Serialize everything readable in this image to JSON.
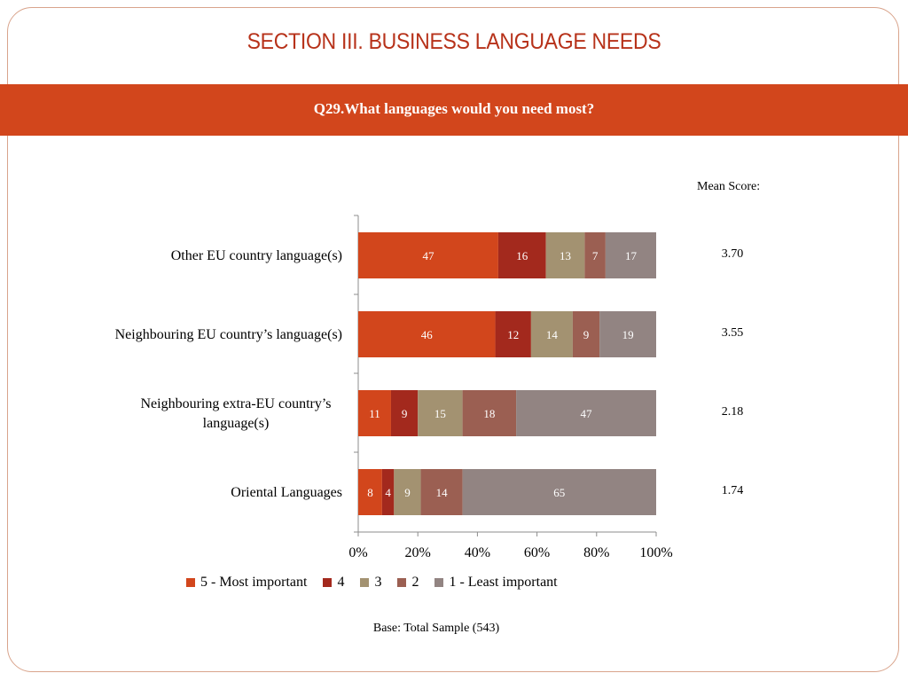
{
  "slide": {
    "section_title": "SECTION III. BUSINESS LANGUAGE NEEDS",
    "question": "Q29.What languages would you need most?",
    "mean_score_title": "Mean Score:",
    "base": "Base: Total Sample (543)"
  },
  "colors": {
    "band": "#d2461c",
    "title": "#b7321a"
  },
  "chart_data": {
    "type": "bar",
    "orientation": "horizontal",
    "stacked": true,
    "percent_stacked": true,
    "categories": [
      [
        "Other EU country language(s)"
      ],
      [
        "Neighbouring EU country’s language(s)"
      ],
      [
        "Neighbouring extra-EU country’s",
        "language(s)"
      ],
      [
        "Oriental Languages"
      ]
    ],
    "series": [
      {
        "name": "5 - Most important",
        "color": "#d2461c",
        "values": [
          47,
          46,
          11,
          8
        ]
      },
      {
        "name": "4",
        "color": "#a3291d",
        "values": [
          16,
          12,
          9,
          4
        ]
      },
      {
        "name": "3",
        "color": "#a39271",
        "values": [
          13,
          14,
          15,
          9
        ]
      },
      {
        "name": "2",
        "color": "#9b5f52",
        "values": [
          7,
          9,
          18,
          14
        ]
      },
      {
        "name": "1 - Least important",
        "color": "#928482",
        "values": [
          17,
          19,
          47,
          65
        ]
      }
    ],
    "mean_scores": [
      "3.70",
      "3.55",
      "2.18",
      "1.74"
    ],
    "x_ticks": [
      "0%",
      "20%",
      "40%",
      "60%",
      "80%",
      "100%"
    ],
    "xlim": [
      0,
      100
    ],
    "grid": false,
    "legend_position": "bottom"
  }
}
